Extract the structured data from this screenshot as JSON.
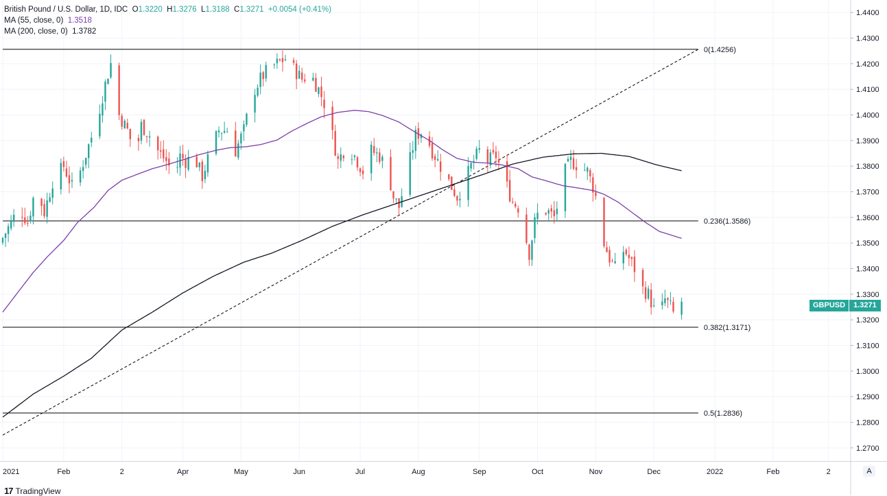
{
  "legend": {
    "title": "British Pound / U.S. Dollar, 1D, IDC",
    "o_label": "O",
    "o_val": "1.3220",
    "h_label": "H",
    "h_val": "1.3276",
    "l_label": "L",
    "l_val": "1.3188",
    "c_label": "C",
    "c_val": "1.3271",
    "change": "+0.0054 (+0.41%)",
    "ma55_label": "MA (55, close, 0)",
    "ma55_val": "1.3518",
    "ma200_label": "MA (200, close, 0)",
    "ma200_val": "1.3782"
  },
  "badge": {
    "symbol": "GBPUSD",
    "price": "1.3271"
  },
  "auto_button": "A",
  "brand": {
    "logo": "17",
    "name": "TradingView"
  },
  "colors": {
    "up": "#26a69a",
    "down": "#ef5350",
    "ma55": "#7b3fa8",
    "ma200": "#131722",
    "grid": "#f0f3fa"
  },
  "chart_data": {
    "type": "candlestick",
    "title": "British Pound / U.S. Dollar, 1D, IDC",
    "ylim": [
      1.265,
      1.445
    ],
    "y_ticks": [
      "1.4400",
      "1.4300",
      "1.4200",
      "1.4100",
      "1.4000",
      "1.3900",
      "1.3800",
      "1.3700",
      "1.3600",
      "1.3500",
      "1.3400",
      "1.3300",
      "1.3200",
      "1.3100",
      "1.3000",
      "1.2900",
      "1.2800",
      "1.2700"
    ],
    "x_labels": [
      {
        "label": "2021",
        "day": 0
      },
      {
        "label": "Feb",
        "day": 22
      },
      {
        "label": "2",
        "day": 43
      },
      {
        "label": "Apr",
        "day": 65
      },
      {
        "label": "May",
        "day": 86
      },
      {
        "label": "Jun",
        "day": 107
      },
      {
        "label": "Jul",
        "day": 129
      },
      {
        "label": "Aug",
        "day": 150
      },
      {
        "label": "Sep",
        "day": 172
      },
      {
        "label": "Oct",
        "day": 193
      },
      {
        "label": "Nov",
        "day": 214
      },
      {
        "label": "Dec",
        "day": 235
      },
      {
        "label": "2022",
        "day": 257
      },
      {
        "label": "Feb",
        "day": 278
      },
      {
        "label": "2",
        "day": 298
      }
    ],
    "x_range_days": [
      0,
      306
    ],
    "price_anchors": [
      [
        0,
        1.352
      ],
      [
        6,
        1.364
      ],
      [
        9,
        1.358
      ],
      [
        12,
        1.372
      ],
      [
        15,
        1.362
      ],
      [
        18,
        1.374
      ],
      [
        22,
        1.38
      ],
      [
        25,
        1.372
      ],
      [
        28,
        1.378
      ],
      [
        31,
        1.388
      ],
      [
        34,
        1.398
      ],
      [
        37,
        1.412
      ],
      [
        40,
        1.424
      ],
      [
        42,
        1.4
      ],
      [
        45,
        1.394
      ],
      [
        48,
        1.384
      ],
      [
        50,
        1.396
      ],
      [
        53,
        1.392
      ],
      [
        56,
        1.386
      ],
      [
        59,
        1.382
      ],
      [
        62,
        1.376
      ],
      [
        64,
        1.384
      ],
      [
        66,
        1.382
      ],
      [
        69,
        1.384
      ],
      [
        72,
        1.376
      ],
      [
        75,
        1.386
      ],
      [
        78,
        1.394
      ],
      [
        81,
        1.394
      ],
      [
        84,
        1.386
      ],
      [
        87,
        1.394
      ],
      [
        90,
        1.408
      ],
      [
        93,
        1.414
      ],
      [
        96,
        1.418
      ],
      [
        99,
        1.42
      ],
      [
        102,
        1.422
      ],
      [
        105,
        1.418
      ],
      [
        108,
        1.414
      ],
      [
        111,
        1.416
      ],
      [
        114,
        1.41
      ],
      [
        117,
        1.402
      ],
      [
        119,
        1.392
      ],
      [
        121,
        1.382
      ],
      [
        124,
        1.388
      ],
      [
        127,
        1.384
      ],
      [
        130,
        1.378
      ],
      [
        133,
        1.386
      ],
      [
        136,
        1.384
      ],
      [
        139,
        1.378
      ],
      [
        141,
        1.368
      ],
      [
        143,
        1.364
      ],
      [
        146,
        1.378
      ],
      [
        149,
        1.392
      ],
      [
        152,
        1.394
      ],
      [
        155,
        1.386
      ],
      [
        158,
        1.38
      ],
      [
        160,
        1.376
      ],
      [
        162,
        1.372
      ],
      [
        164,
        1.368
      ],
      [
        166,
        1.372
      ],
      [
        169,
        1.38
      ],
      [
        172,
        1.386
      ],
      [
        175,
        1.382
      ],
      [
        178,
        1.384
      ],
      [
        180,
        1.378
      ],
      [
        182,
        1.372
      ],
      [
        184,
        1.366
      ],
      [
        186,
        1.364
      ],
      [
        188,
        1.356
      ],
      [
        190,
        1.346
      ],
      [
        192,
        1.358
      ],
      [
        194,
        1.364
      ],
      [
        197,
        1.362
      ],
      [
        199,
        1.36
      ],
      [
        201,
        1.368
      ],
      [
        203,
        1.378
      ],
      [
        205,
        1.382
      ],
      [
        208,
        1.38
      ],
      [
        211,
        1.378
      ],
      [
        213,
        1.372
      ],
      [
        215,
        1.364
      ],
      [
        217,
        1.35
      ],
      [
        219,
        1.344
      ],
      [
        221,
        1.34
      ],
      [
        223,
        1.348
      ],
      [
        225,
        1.346
      ],
      [
        227,
        1.342
      ],
      [
        229,
        1.338
      ],
      [
        231,
        1.332
      ],
      [
        233,
        1.33
      ],
      [
        235,
        1.324
      ],
      [
        237,
        1.322
      ],
      [
        239,
        1.328
      ],
      [
        241,
        1.325
      ],
      [
        243,
        1.32
      ],
      [
        245,
        1.3271
      ]
    ],
    "ma55_anchors": [
      [
        0,
        1.323
      ],
      [
        6,
        1.3315
      ],
      [
        11,
        1.3385
      ],
      [
        16,
        1.3445
      ],
      [
        22,
        1.351
      ],
      [
        27,
        1.358
      ],
      [
        33,
        1.364
      ],
      [
        38,
        1.3705
      ],
      [
        43,
        1.3745
      ],
      [
        49,
        1.377
      ],
      [
        54,
        1.379
      ],
      [
        60,
        1.3808
      ],
      [
        66,
        1.3828
      ],
      [
        71,
        1.3845
      ],
      [
        77,
        1.3862
      ],
      [
        82,
        1.3872
      ],
      [
        88,
        1.3876
      ],
      [
        93,
        1.3884
      ],
      [
        99,
        1.3902
      ],
      [
        104,
        1.3935
      ],
      [
        110,
        1.3968
      ],
      [
        115,
        1.3993
      ],
      [
        121,
        1.401
      ],
      [
        127,
        1.4018
      ],
      [
        132,
        1.4013
      ],
      [
        137,
        1.3998
      ],
      [
        143,
        1.3972
      ],
      [
        148,
        1.3938
      ],
      [
        154,
        1.39
      ],
      [
        159,
        1.3862
      ],
      [
        164,
        1.383
      ],
      [
        170,
        1.3815
      ],
      [
        175,
        1.3812
      ],
      [
        180,
        1.3805
      ],
      [
        186,
        1.379
      ],
      [
        191,
        1.3758
      ],
      [
        197,
        1.374
      ],
      [
        202,
        1.3724
      ],
      [
        208,
        1.3714
      ],
      [
        213,
        1.3705
      ],
      [
        217,
        1.369
      ],
      [
        222,
        1.366
      ],
      [
        227,
        1.362
      ],
      [
        232,
        1.358
      ],
      [
        237,
        1.3545
      ],
      [
        245,
        1.3518
      ]
    ],
    "ma200_anchors": [
      [
        0,
        1.282
      ],
      [
        11,
        1.291
      ],
      [
        22,
        1.298
      ],
      [
        32,
        1.305
      ],
      [
        43,
        1.316
      ],
      [
        54,
        1.323
      ],
      [
        65,
        1.3305
      ],
      [
        76,
        1.337
      ],
      [
        87,
        1.3425
      ],
      [
        97,
        1.346
      ],
      [
        108,
        1.351
      ],
      [
        119,
        1.3565
      ],
      [
        130,
        1.361
      ],
      [
        141,
        1.365
      ],
      [
        152,
        1.369
      ],
      [
        163,
        1.373
      ],
      [
        174,
        1.377
      ],
      [
        184,
        1.3808
      ],
      [
        195,
        1.3835
      ],
      [
        206,
        1.3848
      ],
      [
        216,
        1.385
      ],
      [
        226,
        1.3838
      ],
      [
        236,
        1.3805
      ],
      [
        245,
        1.3782
      ]
    ],
    "trendline": {
      "from": [
        0,
        1.275
      ],
      "to": [
        251,
        1.4256
      ],
      "style": "dashed"
    },
    "fib_levels": [
      {
        "label": "0(1.4256)",
        "value": 1.4256
      },
      {
        "label": "0.236(1.3586)",
        "value": 1.3586
      },
      {
        "label": "0.382(1.3171)",
        "value": 1.3171
      },
      {
        "label": "0.5(1.2836)",
        "value": 1.2836
      }
    ],
    "fib_end_day": 251,
    "last_close": 1.3271
  }
}
